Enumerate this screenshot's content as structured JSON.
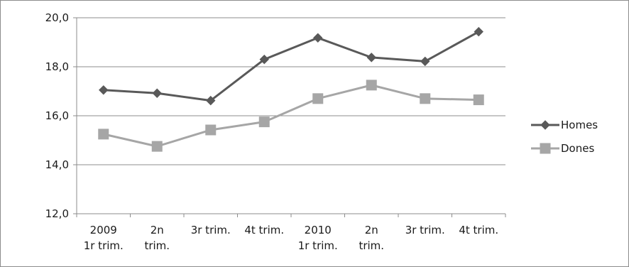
{
  "chart_data": {
    "type": "line",
    "title": "",
    "xlabel": "",
    "ylabel": "",
    "categories": [
      [
        "2009",
        "1r trim."
      ],
      [
        "2n",
        "trim."
      ],
      [
        "3r trim."
      ],
      [
        "4t trim."
      ],
      [
        "2010",
        "1r trim."
      ],
      [
        "2n",
        "trim."
      ],
      [
        "3r trim."
      ],
      [
        "4t trim."
      ]
    ],
    "ylim": [
      12,
      20
    ],
    "yticks": [
      "12,0",
      "14,0",
      "16,0",
      "18,0",
      "20,0"
    ],
    "ytick_values": [
      12,
      14,
      16,
      18,
      20
    ],
    "grid": true,
    "legend_position": "right",
    "series": [
      {
        "name": "Homes",
        "values": [
          17.05,
          16.92,
          16.62,
          18.3,
          19.18,
          18.38,
          18.22,
          19.43
        ],
        "color": "#595959",
        "marker": "diamond"
      },
      {
        "name": "Dones",
        "values": [
          15.25,
          14.75,
          15.42,
          15.75,
          16.7,
          17.25,
          16.7,
          16.65
        ],
        "color": "#a6a6a6",
        "marker": "square"
      }
    ]
  }
}
